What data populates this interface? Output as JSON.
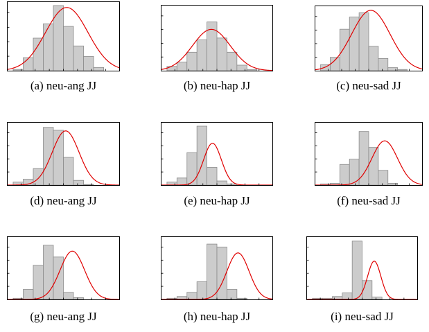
{
  "figure": {
    "colors": {
      "bar_fill": "#cccccc",
      "bar_stroke": "#8a8a8a",
      "curve": "#e00000",
      "frame": "#000000"
    }
  },
  "chart_data": [
    {
      "type": "bar",
      "caption": "(a) neu-ang JJ",
      "values": [
        0.02,
        0.2,
        0.5,
        0.72,
        1.0,
        0.68,
        0.38,
        0.22,
        0.05,
        0.0
      ],
      "fit": {
        "mean": 0.53,
        "sd": 0.19,
        "peak": 0.97
      }
    },
    {
      "type": "bar",
      "caption": "(b) neu-hap JJ",
      "values": [
        0.07,
        0.14,
        0.3,
        0.5,
        0.79,
        0.53,
        0.3,
        0.09,
        0.02,
        0.0
      ],
      "fit": {
        "mean": 0.45,
        "sd": 0.17,
        "peak": 0.67
      }
    },
    {
      "type": "bar",
      "caption": "(c) neu-sad JJ",
      "values": [
        0.1,
        0.22,
        0.68,
        0.88,
        0.95,
        0.4,
        0.2,
        0.05,
        0.02,
        0.0
      ],
      "fit": {
        "mean": 0.52,
        "sd": 0.18,
        "peak": 0.99
      }
    },
    {
      "type": "bar",
      "caption": "(d) neu-ang JJ",
      "values": [
        0.05,
        0.1,
        0.28,
        0.98,
        0.93,
        0.47,
        0.08,
        0.01,
        0.0,
        0.0
      ],
      "fit": {
        "mean": 0.52,
        "sd": 0.12,
        "peak": 0.92
      }
    },
    {
      "type": "bar",
      "caption": "(e) neu-hap JJ",
      "values": [
        0.05,
        0.12,
        0.55,
        1.0,
        0.3,
        0.07,
        0.02,
        0.0,
        0.0,
        0.0
      ],
      "fit": {
        "mean": 0.46,
        "sd": 0.08,
        "peak": 0.71
      }
    },
    {
      "type": "bar",
      "caption": "(f) neu-sad JJ",
      "values": [
        0.02,
        0.03,
        0.35,
        0.44,
        0.91,
        0.64,
        0.25,
        0.03,
        0.0,
        0.0
      ],
      "fit": {
        "mean": 0.65,
        "sd": 0.12,
        "peak": 0.75
      }
    },
    {
      "type": "bar",
      "caption": "(g) neu-ang JJ",
      "values": [
        0.02,
        0.17,
        0.58,
        0.92,
        0.72,
        0.12,
        0.03,
        0.0,
        0.0,
        0.0
      ],
      "fit": {
        "mean": 0.58,
        "sd": 0.11,
        "peak": 0.82
      }
    },
    {
      "type": "bar",
      "caption": "(h) neu-hap JJ",
      "values": [
        0.02,
        0.05,
        0.12,
        0.3,
        0.94,
        0.89,
        0.17,
        0.02,
        0.0,
        0.0
      ],
      "fit": {
        "mean": 0.69,
        "sd": 0.1,
        "peak": 0.79
      }
    },
    {
      "type": "bar",
      "caption": "(i) neu-sad JJ",
      "values": [
        0.02,
        0.02,
        0.05,
        0.11,
        0.99,
        0.32,
        0.04,
        0.0,
        0.0,
        0.0
      ],
      "fit": {
        "mean": 0.61,
        "sd": 0.06,
        "peak": 0.65
      }
    }
  ]
}
